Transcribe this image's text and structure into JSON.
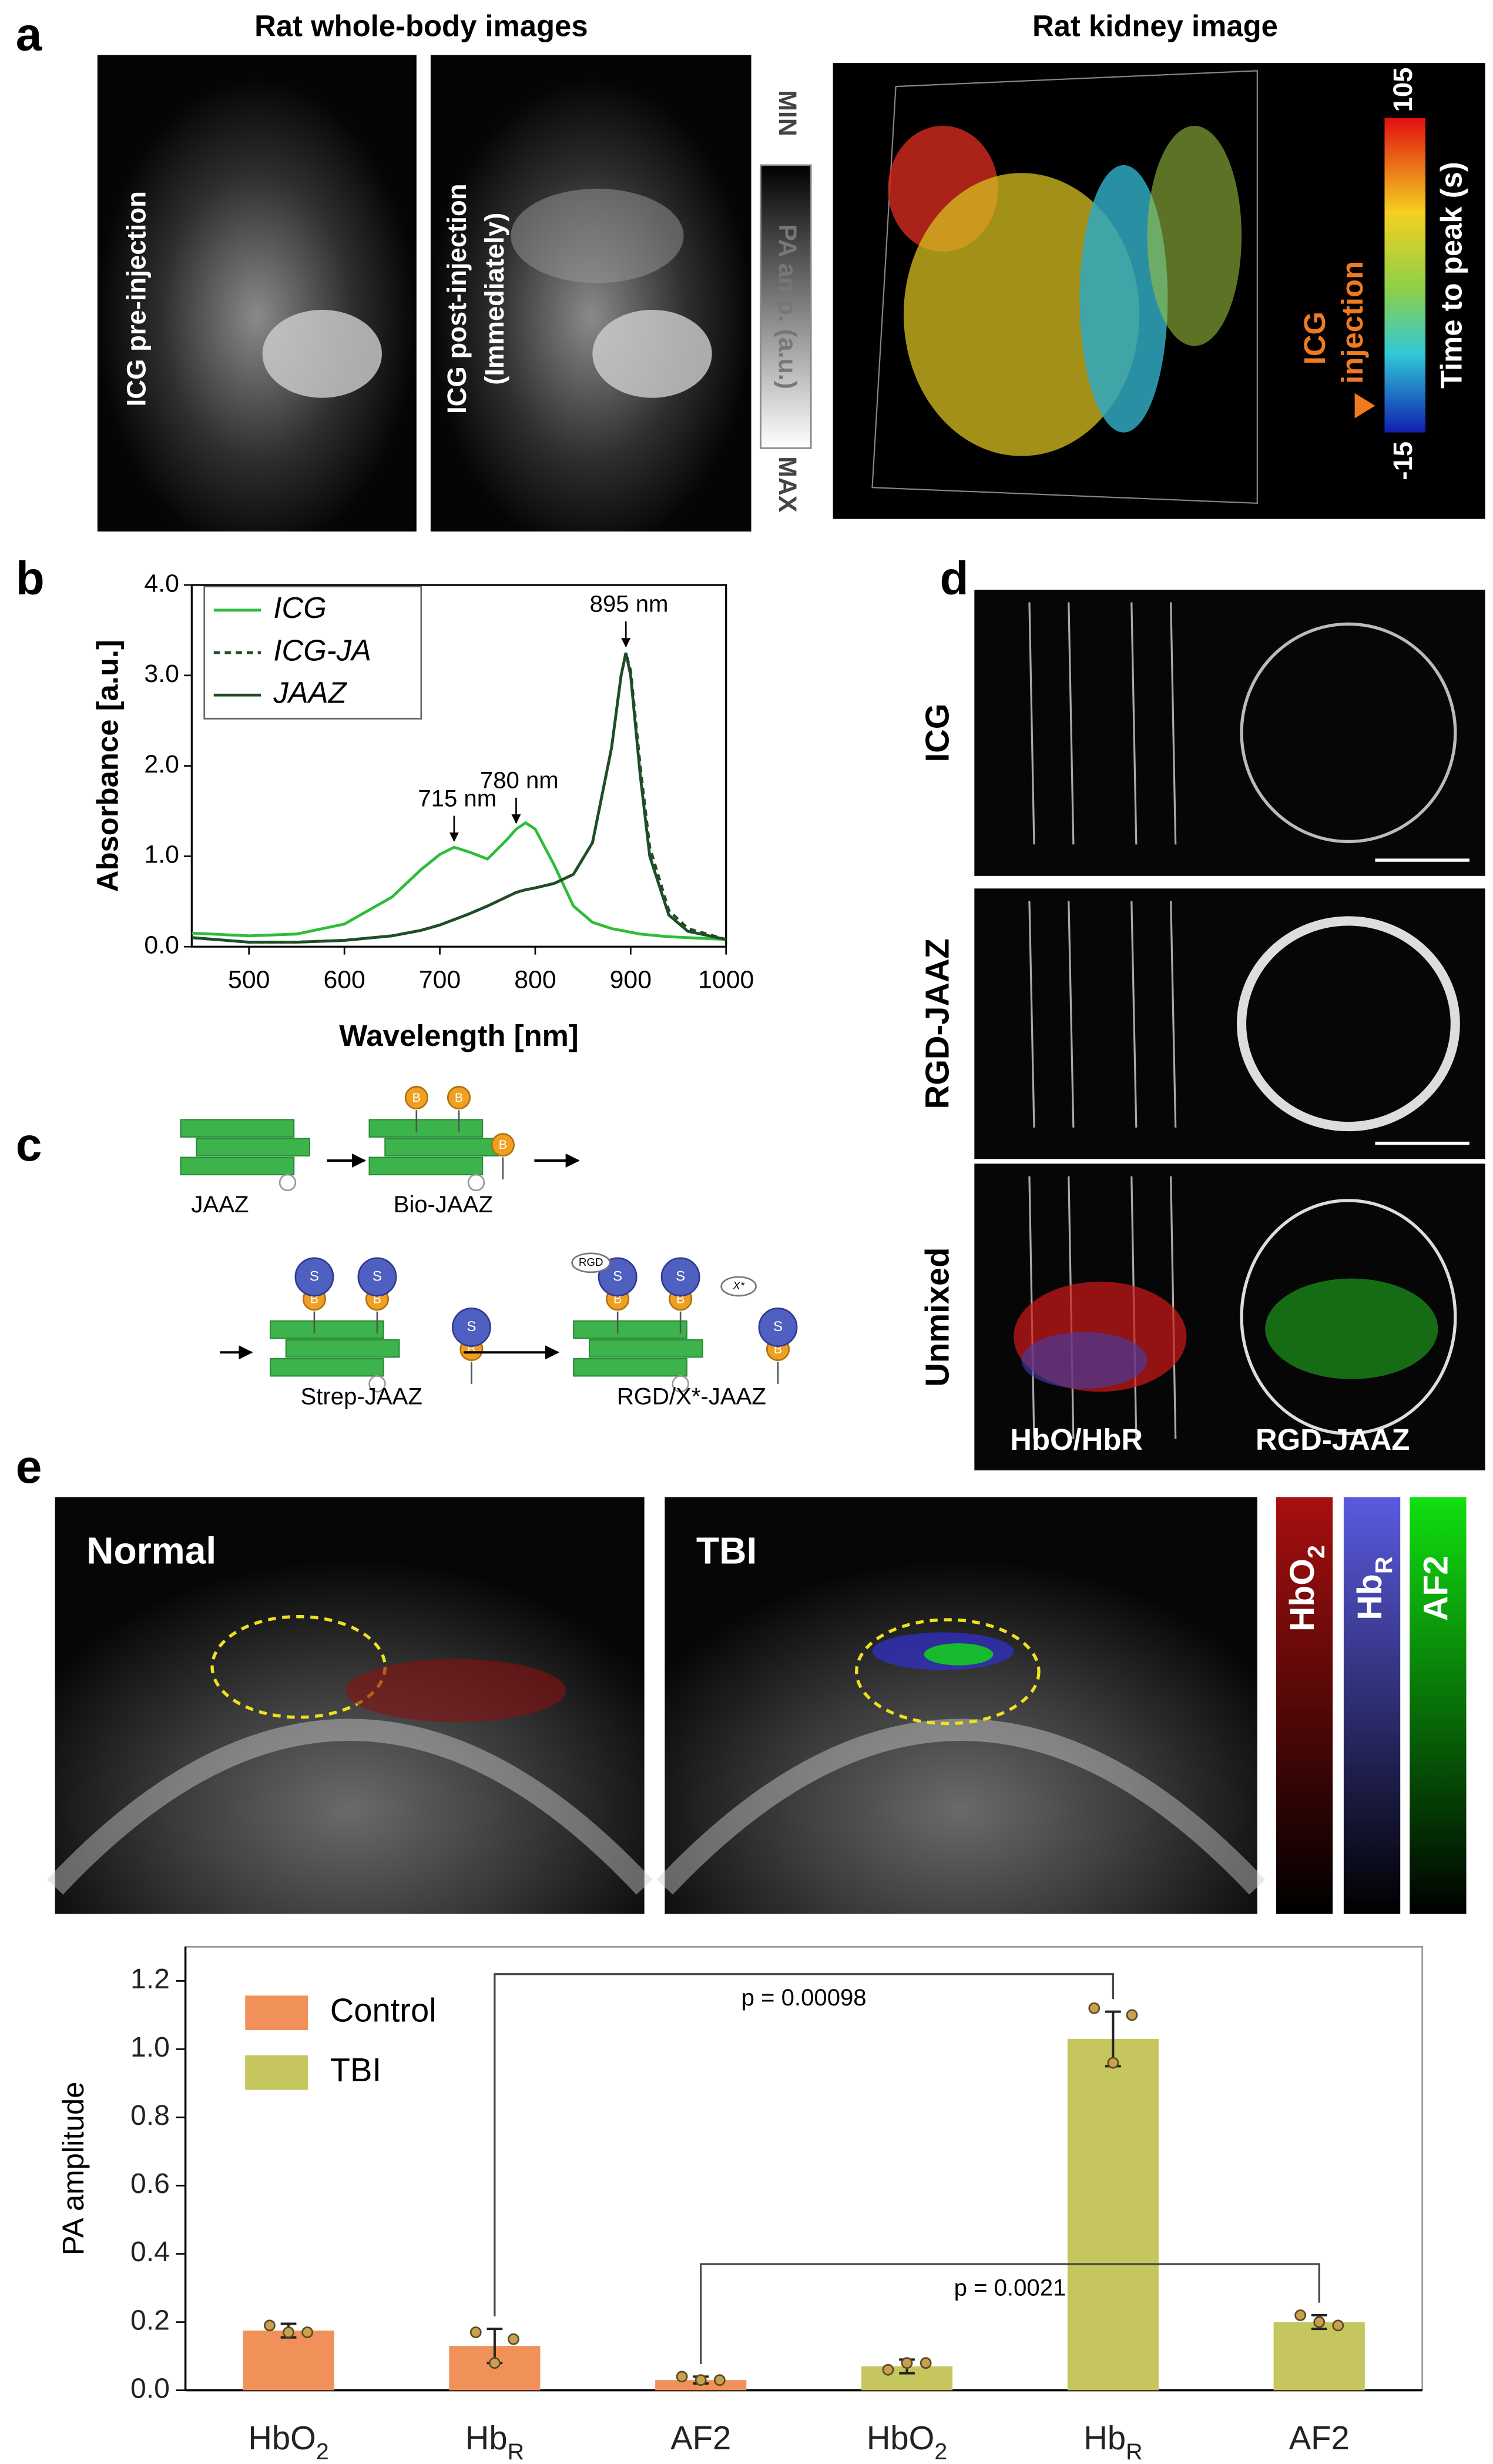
{
  "figure": {
    "a": {
      "label": "a",
      "titles": [
        "Rat whole-body images",
        "Rat kidney image"
      ],
      "images": [
        [
          "ICG pre-injection"
        ],
        [
          "ICG post-injection",
          "(Immediately)"
        ]
      ],
      "pa_scale": {
        "min": "MIN",
        "label": "PA amp. (a.u.)",
        "max": "MAX"
      },
      "kidney": {
        "injection": [
          "ICG",
          "injection"
        ],
        "colorbar": {
          "top": "105",
          "bottom": "-15",
          "label": "Time to peak (s)"
        }
      }
    },
    "b": {
      "label": "b"
    },
    "c": {
      "label": "c",
      "stages": [
        "JAAZ",
        "Bio-JAAZ",
        "Strep-JAAZ",
        "RGD/X*-JAAZ"
      ],
      "glyphs": {
        "biotin": "B",
        "streptavidin": "S",
        "rgd": "RGD",
        "x": "X*"
      }
    },
    "d": {
      "label": "d",
      "rows": [
        "ICG",
        "RGD-JAAZ",
        "Unmixed"
      ],
      "overlays": [
        "HbO/HbR",
        "RGD-JAAZ"
      ]
    },
    "e": {
      "label": "e",
      "images": [
        "Normal",
        "TBI"
      ],
      "channels": [
        {
          "text": "HbO",
          "sub": "2"
        },
        {
          "text": "Hb",
          "sub": "R"
        },
        {
          "text": "AF2"
        }
      ]
    }
  },
  "chart_data": [
    {
      "type": "line",
      "xlabel": "Wavelength [nm]",
      "ylabel": "Absorbance [a.u.]",
      "xlim": [
        440,
        1000
      ],
      "ylim": [
        0,
        4
      ],
      "xticks": [
        500,
        600,
        700,
        800,
        900,
        1000
      ],
      "yticks": [
        {
          "value": 0,
          "label": "0.0"
        },
        {
          "value": 1,
          "label": "1.0"
        },
        {
          "value": 2,
          "label": "2.0"
        },
        {
          "value": 3,
          "label": "3.0"
        },
        {
          "value": 4,
          "label": "4.0"
        }
      ],
      "x": [
        440,
        500,
        550,
        600,
        650,
        680,
        700,
        715,
        730,
        750,
        770,
        780,
        790,
        800,
        820,
        840,
        860,
        880,
        890,
        895,
        900,
        910,
        920,
        940,
        960,
        1000
      ],
      "series": [
        {
          "name": "ICG",
          "color": "#2ebd3a",
          "style": "solid",
          "values": [
            0.15,
            0.12,
            0.14,
            0.25,
            0.55,
            0.85,
            1.02,
            1.1,
            1.05,
            0.97,
            1.18,
            1.3,
            1.37,
            1.3,
            0.9,
            0.45,
            0.27,
            0.2,
            0.18,
            0.17,
            0.16,
            0.14,
            0.13,
            0.11,
            0.1,
            0.08
          ]
        },
        {
          "name": "ICG-JA",
          "color": "#1f4d26",
          "style": "dashed",
          "values": [
            0.1,
            0.05,
            0.05,
            0.07,
            0.12,
            0.18,
            0.24,
            0.3,
            0.36,
            0.45,
            0.55,
            0.6,
            0.63,
            0.65,
            0.7,
            0.8,
            1.15,
            2.2,
            3.0,
            3.25,
            3.05,
            2.0,
            1.1,
            0.4,
            0.2,
            0.08
          ]
        },
        {
          "name": "JAAZ",
          "color": "#1f4d26",
          "style": "solid",
          "values": [
            0.1,
            0.05,
            0.05,
            0.07,
            0.12,
            0.18,
            0.24,
            0.3,
            0.36,
            0.45,
            0.55,
            0.6,
            0.63,
            0.65,
            0.7,
            0.8,
            1.15,
            2.2,
            3.0,
            3.25,
            3.0,
            1.9,
            1.0,
            0.35,
            0.17,
            0.08
          ]
        }
      ],
      "annotations": [
        {
          "text": "715 nm",
          "x": 715,
          "y": 1.1
        },
        {
          "text": "780 nm",
          "x": 780,
          "y": 1.3
        },
        {
          "text": "895 nm",
          "x": 895,
          "y": 3.25
        }
      ],
      "legend": "upper left"
    },
    {
      "type": "bar",
      "ylabel": "PA amplitude",
      "ylim": [
        0,
        1.3
      ],
      "yticks": [
        {
          "value": 0,
          "label": "0.0"
        },
        {
          "value": 0.2,
          "label": "0.2"
        },
        {
          "value": 0.4,
          "label": "0.4"
        },
        {
          "value": 0.6,
          "label": "0.6"
        },
        {
          "value": 0.8,
          "label": "0.8"
        },
        {
          "value": 1,
          "label": "1.0"
        },
        {
          "value": 1.2,
          "label": "1.2"
        }
      ],
      "categories": [
        {
          "text": "HbO",
          "sub": "2"
        },
        {
          "text": "Hb",
          "sub": "R"
        },
        {
          "text": "AF2"
        },
        {
          "text": "HbO",
          "sub": "2"
        },
        {
          "text": "Hb",
          "sub": "R"
        },
        {
          "text": "AF2"
        }
      ],
      "series": [
        {
          "name": "Control",
          "color": "#f0915a",
          "values": [
            0.175,
            0.13,
            0.03,
            null,
            null,
            null
          ],
          "errors": [
            0.02,
            0.05,
            0.01,
            null,
            null,
            null
          ],
          "points": [
            [
              0.19,
              0.17,
              0.17
            ],
            [
              0.17,
              0.08,
              0.15
            ],
            [
              0.04,
              0.03,
              0.03
            ],
            null,
            null,
            null
          ]
        },
        {
          "name": "TBI",
          "color": "#c5c65d",
          "values": [
            null,
            null,
            null,
            0.07,
            1.03,
            0.2
          ],
          "errors": [
            null,
            null,
            null,
            0.02,
            0.08,
            0.02
          ],
          "points": [
            null,
            null,
            null,
            [
              0.06,
              0.08,
              0.08
            ],
            [
              1.12,
              0.96,
              1.1
            ],
            [
              0.22,
              0.2,
              0.19
            ]
          ]
        }
      ],
      "annotations": [
        {
          "text": "p = 0.00098",
          "y": 1.22
        },
        {
          "text": "p = 0.0021",
          "y": 0.37
        }
      ],
      "legend": "upper left"
    }
  ]
}
